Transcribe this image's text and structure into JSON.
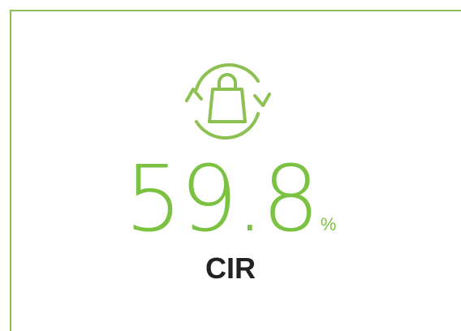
{
  "kpi": {
    "value": 59.8,
    "unit": "%",
    "label": "CIR"
  }
}
